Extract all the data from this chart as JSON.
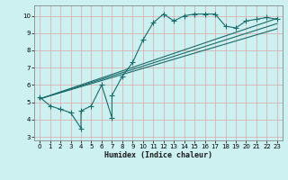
{
  "xlabel": "Humidex (Indice chaleur)",
  "xlim": [
    -0.5,
    23.5
  ],
  "ylim": [
    2.8,
    10.6
  ],
  "xticks": [
    0,
    1,
    2,
    3,
    4,
    5,
    6,
    7,
    8,
    9,
    10,
    11,
    12,
    13,
    14,
    15,
    16,
    17,
    18,
    19,
    20,
    21,
    22,
    23
  ],
  "yticks": [
    3,
    4,
    5,
    6,
    7,
    8,
    9,
    10
  ],
  "bg_color": "#cdf0f0",
  "grid_color": "#d9a8a8",
  "line_color": "#1a6b6b",
  "line1_x": [
    0,
    1,
    2,
    3,
    4,
    4,
    5,
    6,
    7,
    7,
    8,
    9,
    10,
    11,
    12,
    13,
    14,
    15,
    16,
    17,
    18,
    19,
    20,
    21,
    22,
    23
  ],
  "line1_y": [
    5.3,
    4.8,
    4.6,
    4.4,
    3.5,
    4.5,
    4.8,
    6.0,
    4.1,
    5.4,
    6.5,
    7.3,
    8.6,
    9.6,
    10.1,
    9.7,
    10.0,
    10.1,
    10.1,
    10.1,
    9.4,
    9.3,
    9.7,
    9.8,
    9.9,
    9.8
  ],
  "line2_x": [
    0,
    23
  ],
  "line2_y": [
    5.2,
    9.85
  ],
  "line3_x": [
    0,
    23
  ],
  "line3_y": [
    5.2,
    9.55
  ],
  "line4_x": [
    0,
    23
  ],
  "line4_y": [
    5.2,
    9.25
  ],
  "marker_size": 2.5,
  "linewidth": 0.8
}
